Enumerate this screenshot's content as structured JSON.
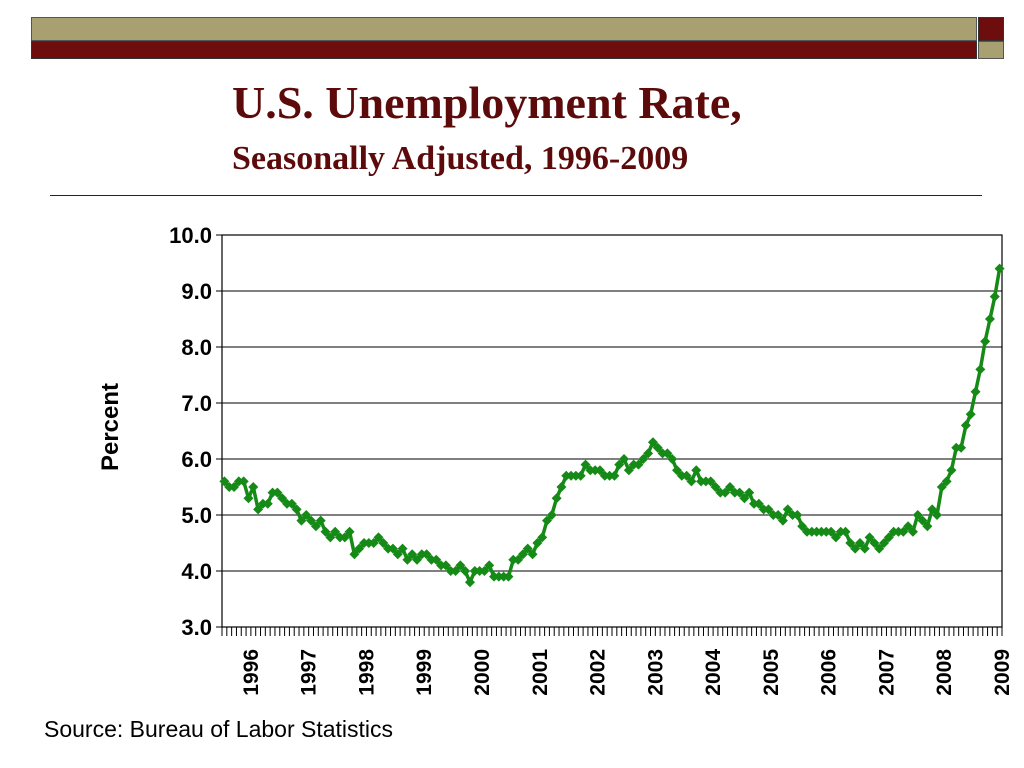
{
  "slide": {
    "title": "U.S. Unemployment Rate,",
    "subtitle": "Seasonally Adjusted, 1996-2009",
    "source": "Source: Bureau of Labor Statistics",
    "colors": {
      "band_olive": "#a8a070",
      "band_maroon": "#6e0d0d",
      "title": "#5c0a0a"
    }
  },
  "chart_data": {
    "type": "line",
    "title": "",
    "xlabel": "",
    "ylabel": "Percent",
    "ylim": [
      3.0,
      10.0
    ],
    "yticks": [
      "3.0",
      "4.0",
      "5.0",
      "6.0",
      "7.0",
      "8.0",
      "9.0",
      "10.0"
    ],
    "xticks": [
      "1996",
      "1997",
      "1998",
      "1999",
      "2000",
      "2001",
      "2002",
      "2003",
      "2004",
      "2005",
      "2006",
      "2007",
      "2008",
      "2009"
    ],
    "grid": true,
    "legend": "none",
    "marker": "diamond",
    "series_color": "#168a16",
    "series": [
      {
        "values": [
          5.6,
          5.5,
          5.5,
          5.6,
          5.6,
          5.3,
          5.5,
          5.1,
          5.2,
          5.2,
          5.4,
          5.4,
          5.3,
          5.2,
          5.2,
          5.1,
          4.9,
          5.0,
          4.9,
          4.8,
          4.9,
          4.7,
          4.6,
          4.7,
          4.6,
          4.6,
          4.7,
          4.3,
          4.4,
          4.5,
          4.5,
          4.5,
          4.6,
          4.5,
          4.4,
          4.4,
          4.3,
          4.4,
          4.2,
          4.3,
          4.2,
          4.3,
          4.3,
          4.2,
          4.2,
          4.1,
          4.1,
          4.0,
          4.0,
          4.1,
          4.0,
          3.8,
          4.0,
          4.0,
          4.0,
          4.1,
          3.9,
          3.9,
          3.9,
          3.9,
          4.2,
          4.2,
          4.3,
          4.4,
          4.3,
          4.5,
          4.6,
          4.9,
          5.0,
          5.3,
          5.5,
          5.7,
          5.7,
          5.7,
          5.7,
          5.9,
          5.8,
          5.8,
          5.8,
          5.7,
          5.7,
          5.7,
          5.9,
          6.0,
          5.8,
          5.9,
          5.9,
          6.0,
          6.1,
          6.3,
          6.2,
          6.1,
          6.1,
          6.0,
          5.8,
          5.7,
          5.7,
          5.6,
          5.8,
          5.6,
          5.6,
          5.6,
          5.5,
          5.4,
          5.4,
          5.5,
          5.4,
          5.4,
          5.3,
          5.4,
          5.2,
          5.2,
          5.1,
          5.1,
          5.0,
          5.0,
          4.9,
          5.1,
          5.0,
          5.0,
          4.8,
          4.7,
          4.7,
          4.7,
          4.7,
          4.7,
          4.7,
          4.6,
          4.7,
          4.7,
          4.5,
          4.4,
          4.5,
          4.4,
          4.6,
          4.5,
          4.4,
          4.5,
          4.6,
          4.7,
          4.7,
          4.7,
          4.8,
          4.7,
          5.0,
          4.9,
          4.8,
          5.1,
          5.0,
          5.5,
          5.6,
          5.8,
          6.2,
          6.2,
          6.6,
          6.8,
          7.2,
          7.6,
          8.1,
          8.5,
          8.9,
          9.4
        ]
      }
    ]
  }
}
